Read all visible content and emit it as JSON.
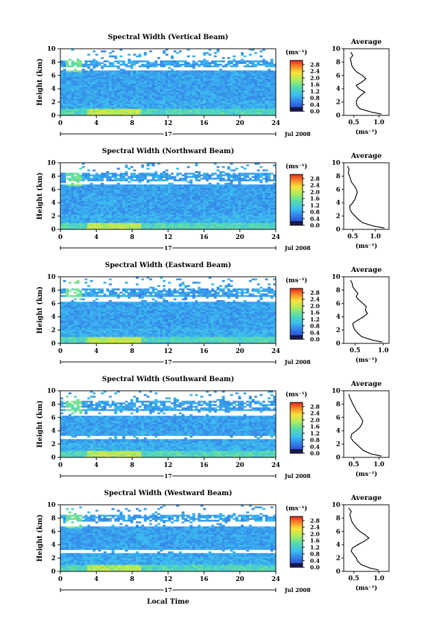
{
  "figure": {
    "date_label": "Jul 2008",
    "xlabel": "Local Time",
    "day_label": "17",
    "colorbar_unit": "(ms⁻¹)",
    "colorbar_ticks": [
      "0.0",
      "0.4",
      "0.8",
      "1.2",
      "1.6",
      "2.0",
      "2.4",
      "2.8"
    ],
    "profile_title": "Average",
    "profile_xlabel": "(ms⁻¹)"
  },
  "chart_data": [
    {
      "type": "heatmap",
      "title": "Spectral Width (Vertical Beam)",
      "ylabel": "Height (km)",
      "xlim": [
        0,
        24
      ],
      "ylim": [
        0,
        10
      ],
      "xticks": [
        0,
        4,
        8,
        12,
        16,
        20,
        24
      ],
      "yticks": [
        0,
        2,
        4,
        6,
        8,
        10
      ],
      "color_range": [
        0.0,
        2.8
      ],
      "gap_bands_km": [
        [
          6.7,
          7.3
        ],
        [
          8.3,
          10.0
        ]
      ],
      "profile": {
        "title": "Average",
        "xlim": [
          0.3,
          1.2
        ],
        "xticks": [
          0.5,
          1.0
        ],
        "heights": [
          0.2,
          0.5,
          1.0,
          1.5,
          2.0,
          2.5,
          3.0,
          3.5,
          4.0,
          4.5,
          5.0,
          5.5,
          6.0,
          6.5,
          7.0,
          7.5,
          8.0,
          8.5,
          9.0,
          9.5
        ],
        "values": [
          1.05,
          0.85,
          0.62,
          0.56,
          0.55,
          0.57,
          0.64,
          0.72,
          0.6,
          0.55,
          0.66,
          0.74,
          0.67,
          0.56,
          0.5,
          0.46,
          0.45,
          0.43,
          0.48,
          0.44
        ]
      }
    },
    {
      "type": "heatmap",
      "title": "Spectral Width (Northward Beam)",
      "ylabel": "Height (km)",
      "xlim": [
        0,
        24
      ],
      "ylim": [
        0,
        10
      ],
      "xticks": [
        0,
        4,
        8,
        12,
        16,
        20,
        24
      ],
      "yticks": [
        0,
        2,
        4,
        6,
        8,
        10
      ],
      "color_range": [
        0.0,
        2.8
      ],
      "gap_bands_km": [
        [
          6.8,
          7.2
        ],
        [
          8.5,
          10.0
        ]
      ],
      "profile": {
        "title": "Average",
        "xlim": [
          0.3,
          1.3
        ],
        "xticks": [
          0.5,
          1.0
        ],
        "heights": [
          0.2,
          0.5,
          1.0,
          1.5,
          2.0,
          2.5,
          3.0,
          3.5,
          4.0,
          4.5,
          5.0,
          5.5,
          6.0,
          6.5,
          7.0,
          7.5,
          8.0,
          8.5,
          9.0,
          9.5
        ],
        "values": [
          1.2,
          0.95,
          0.72,
          0.62,
          0.55,
          0.48,
          0.44,
          0.43,
          0.5,
          0.55,
          0.57,
          0.6,
          0.58,
          0.54,
          0.48,
          0.45,
          0.43,
          0.4,
          0.42,
          0.38
        ]
      }
    },
    {
      "type": "heatmap",
      "title": "Spectral Width (Eastward Beam)",
      "ylabel": "Height (km)",
      "xlim": [
        0,
        24
      ],
      "ylim": [
        0,
        10
      ],
      "xticks": [
        0,
        4,
        8,
        12,
        16,
        20,
        24
      ],
      "yticks": [
        0,
        2,
        4,
        6,
        8,
        10
      ],
      "color_range": [
        0.0,
        2.8
      ],
      "gap_bands_km": [
        [
          6.2,
          7.0
        ],
        [
          8.2,
          10.0
        ]
      ],
      "profile": {
        "title": "Average",
        "xlim": [
          0.3,
          1.1
        ],
        "xticks": [
          0.5,
          1.0
        ],
        "heights": [
          0.2,
          0.5,
          1.0,
          1.5,
          2.0,
          2.5,
          3.0,
          3.5,
          4.0,
          4.5,
          5.0,
          5.5,
          6.0,
          6.5,
          7.0,
          7.5,
          8.0,
          8.5,
          9.0,
          9.5
        ],
        "values": [
          0.98,
          0.8,
          0.62,
          0.55,
          0.5,
          0.47,
          0.46,
          0.55,
          0.65,
          0.72,
          0.68,
          0.7,
          0.64,
          0.57,
          0.52,
          0.55,
          0.5,
          0.46,
          0.45,
          0.42
        ]
      }
    },
    {
      "type": "heatmap",
      "title": "Spectral Width (Southward Beam)",
      "ylabel": "Height (km)",
      "xlim": [
        0,
        24
      ],
      "ylim": [
        0,
        10
      ],
      "xticks": [
        0,
        4,
        8,
        12,
        16,
        20,
        24
      ],
      "yticks": [
        0,
        2,
        4,
        6,
        8,
        10
      ],
      "color_range": [
        0.0,
        2.8
      ],
      "gap_bands_km": [
        [
          2.7,
          3.3
        ],
        [
          6.3,
          7.1
        ],
        [
          8.5,
          10.0
        ]
      ],
      "profile": {
        "title": "Average",
        "xlim": [
          0.3,
          1.2
        ],
        "xticks": [
          0.5,
          1.0
        ],
        "heights": [
          0.2,
          0.5,
          1.0,
          1.5,
          2.0,
          2.5,
          3.0,
          3.5,
          4.0,
          4.5,
          5.0,
          5.5,
          6.0,
          6.5,
          7.0,
          7.5,
          8.0,
          8.5,
          9.0,
          9.5
        ],
        "values": [
          1.05,
          0.85,
          0.7,
          0.62,
          0.55,
          0.48,
          0.44,
          0.46,
          0.55,
          0.62,
          0.66,
          0.68,
          0.64,
          0.6,
          0.55,
          0.52,
          0.48,
          0.45,
          0.42,
          0.4
        ]
      }
    },
    {
      "type": "heatmap",
      "title": "Spectral Width (Westward Beam)",
      "ylabel": "Height (km)",
      "xlim": [
        0,
        24
      ],
      "ylim": [
        0,
        10
      ],
      "xticks": [
        0,
        4,
        8,
        12,
        16,
        20,
        24
      ],
      "yticks": [
        0,
        2,
        4,
        6,
        8,
        10
      ],
      "color_range": [
        0.0,
        2.8
      ],
      "gap_bands_km": [
        [
          2.8,
          3.2
        ],
        [
          6.8,
          7.4
        ],
        [
          8.5,
          10.0
        ]
      ],
      "profile": {
        "title": "Average",
        "xlim": [
          0.3,
          1.2
        ],
        "xticks": [
          0.5,
          1.0
        ],
        "heights": [
          0.2,
          0.5,
          1.0,
          1.5,
          2.0,
          2.5,
          3.0,
          3.5,
          4.0,
          4.5,
          5.0,
          5.5,
          6.0,
          6.5,
          7.0,
          7.5,
          8.0,
          8.5,
          9.0,
          9.5
        ],
        "values": [
          1.0,
          0.82,
          0.65,
          0.58,
          0.55,
          0.5,
          0.45,
          0.47,
          0.58,
          0.7,
          0.8,
          0.72,
          0.62,
          0.55,
          0.5,
          0.46,
          0.44,
          0.42,
          0.45,
          0.4
        ]
      }
    }
  ]
}
